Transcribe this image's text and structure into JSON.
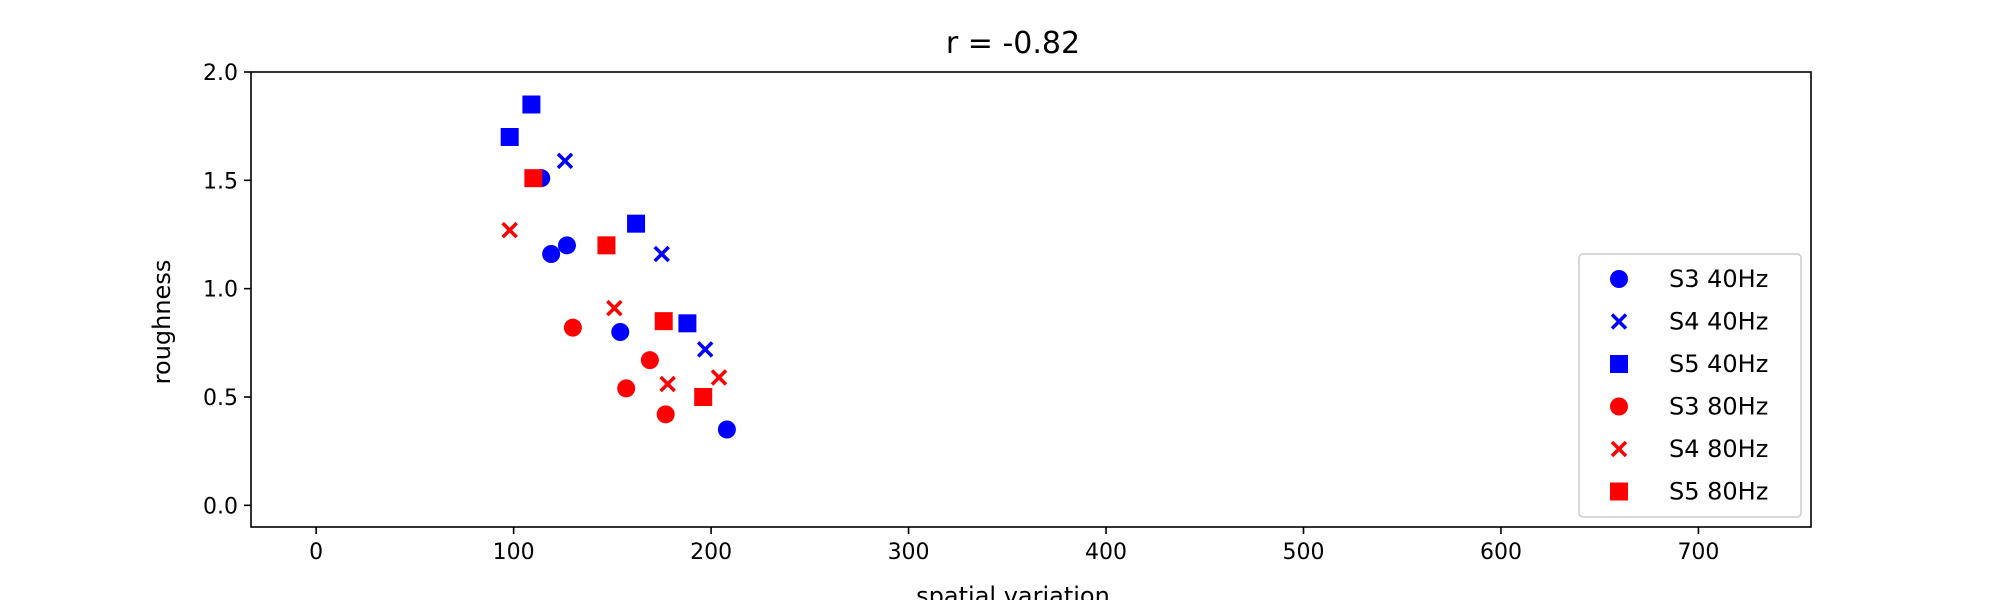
{
  "chart_data": {
    "type": "scatter",
    "title": "r = -0.82",
    "xlabel": "spatial variation",
    "ylabel": "roughness",
    "xlim": [
      -33,
      757
    ],
    "ylim": [
      -0.1,
      2.0
    ],
    "xticks": [
      0,
      100,
      200,
      300,
      400,
      500,
      600,
      700
    ],
    "yticks": [
      0.0,
      0.5,
      1.0,
      1.5,
      2.0
    ],
    "xtick_labels": [
      "0",
      "100",
      "200",
      "300",
      "400",
      "500",
      "600",
      "700"
    ],
    "ytick_labels": [
      "0.0",
      "0.5",
      "1.0",
      "1.5",
      "2.0"
    ],
    "grid": false,
    "legend_position": "lower-right",
    "series": [
      {
        "name": "S3 40Hz",
        "marker": "circle",
        "color": "#0000ff",
        "x": [
          114,
          119,
          127,
          154,
          208
        ],
        "y": [
          1.51,
          1.16,
          1.2,
          0.8,
          0.35
        ]
      },
      {
        "name": "S4 40Hz",
        "marker": "x",
        "color": "#0000ff",
        "x": [
          126,
          175,
          197
        ],
        "y": [
          1.59,
          1.16,
          0.72
        ]
      },
      {
        "name": "S5 40Hz",
        "marker": "square",
        "color": "#0000ff",
        "x": [
          98,
          109,
          162,
          188
        ],
        "y": [
          1.7,
          1.85,
          1.3,
          0.84
        ]
      },
      {
        "name": "S3 80Hz",
        "marker": "circle",
        "color": "#ff0000",
        "x": [
          130,
          157,
          169,
          177
        ],
        "y": [
          0.82,
          0.54,
          0.67,
          0.42
        ]
      },
      {
        "name": "S4 80Hz",
        "marker": "x",
        "color": "#ff0000",
        "x": [
          98,
          151,
          178,
          204
        ],
        "y": [
          1.27,
          0.91,
          0.56,
          0.59
        ]
      },
      {
        "name": "S5 80Hz",
        "marker": "square",
        "color": "#ff0000",
        "x": [
          110,
          147,
          176,
          196
        ],
        "y": [
          1.51,
          1.2,
          0.85,
          0.5
        ]
      }
    ]
  }
}
